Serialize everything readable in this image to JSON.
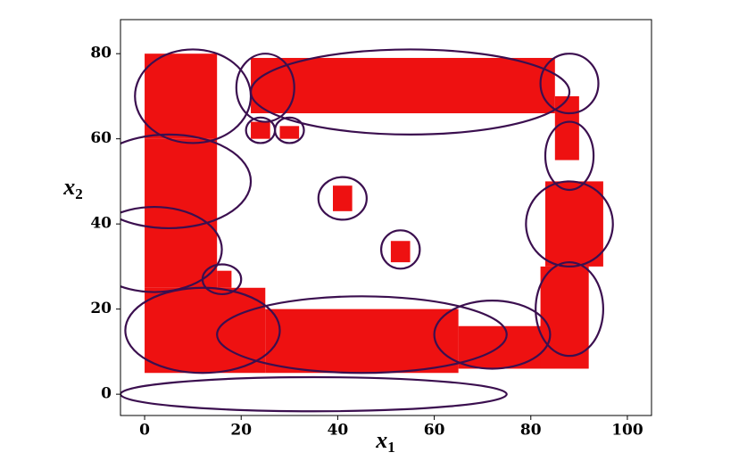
{
  "chart_data": {
    "type": "region-map",
    "xlabel": {
      "text": "x",
      "sub": "1"
    },
    "ylabel": {
      "text": "x",
      "sub": "2"
    },
    "xlim": [
      -5,
      105
    ],
    "ylim": [
      -5,
      88
    ],
    "xticks": [
      0,
      20,
      40,
      60,
      80,
      100
    ],
    "yticks": [
      0,
      20,
      40,
      60,
      80
    ],
    "region_color": "#ee1111",
    "contour_color": "#3b0f4f",
    "regions": [
      {
        "x": [
          0,
          15
        ],
        "y": [
          60,
          80
        ]
      },
      {
        "x": [
          0,
          15
        ],
        "y": [
          25,
          60
        ]
      },
      {
        "x": [
          0,
          25
        ],
        "y": [
          5,
          25
        ]
      },
      {
        "x": [
          22,
          85
        ],
        "y": [
          66,
          79
        ]
      },
      {
        "x": [
          25,
          65
        ],
        "y": [
          5,
          20
        ]
      },
      {
        "x": [
          65,
          85
        ],
        "y": [
          6,
          16
        ]
      },
      {
        "x": [
          82,
          92
        ],
        "y": [
          6,
          30
        ]
      },
      {
        "x": [
          83,
          95
        ],
        "y": [
          30,
          50
        ]
      },
      {
        "x": [
          85,
          90
        ],
        "y": [
          55,
          70
        ]
      },
      {
        "x": [
          39,
          43
        ],
        "y": [
          43,
          49
        ]
      },
      {
        "x": [
          51,
          55
        ],
        "y": [
          31,
          36
        ]
      },
      {
        "x": [
          15,
          18
        ],
        "y": [
          25,
          29
        ]
      },
      {
        "x": [
          22,
          26
        ],
        "y": [
          60,
          64
        ]
      },
      {
        "x": [
          28,
          32
        ],
        "y": [
          60,
          63
        ]
      }
    ],
    "contours": [
      {
        "cx": 10,
        "cy": 70,
        "rx": 12,
        "ry": 11
      },
      {
        "cx": 25,
        "cy": 72,
        "rx": 6,
        "ry": 8
      },
      {
        "cx": 55,
        "cy": 71,
        "rx": 33,
        "ry": 10
      },
      {
        "cx": 24,
        "cy": 62,
        "rx": 3,
        "ry": 3
      },
      {
        "cx": 30,
        "cy": 62,
        "rx": 3,
        "ry": 3
      },
      {
        "cx": 41,
        "cy": 46,
        "rx": 5,
        "ry": 5
      },
      {
        "cx": 53,
        "cy": 34,
        "rx": 4,
        "ry": 4.5
      },
      {
        "cx": 16,
        "cy": 27,
        "rx": 4,
        "ry": 3.5
      },
      {
        "cx": 88,
        "cy": 73,
        "rx": 6,
        "ry": 7
      },
      {
        "cx": 88,
        "cy": 56,
        "rx": 5,
        "ry": 8
      },
      {
        "cx": 88,
        "cy": 40,
        "rx": 9,
        "ry": 10
      },
      {
        "cx": 88,
        "cy": 20,
        "rx": 7,
        "ry": 11
      },
      {
        "cx": 5,
        "cy": 50,
        "rx": 17,
        "ry": 11
      },
      {
        "cx": 2,
        "cy": 34,
        "rx": 14,
        "ry": 10
      },
      {
        "cx": 12,
        "cy": 15,
        "rx": 16,
        "ry": 10
      },
      {
        "cx": 45,
        "cy": 14,
        "rx": 30,
        "ry": 9
      },
      {
        "cx": 72,
        "cy": 14,
        "rx": 12,
        "ry": 8
      },
      {
        "cx": 35,
        "cy": 0,
        "rx": 40,
        "ry": 4
      }
    ]
  }
}
